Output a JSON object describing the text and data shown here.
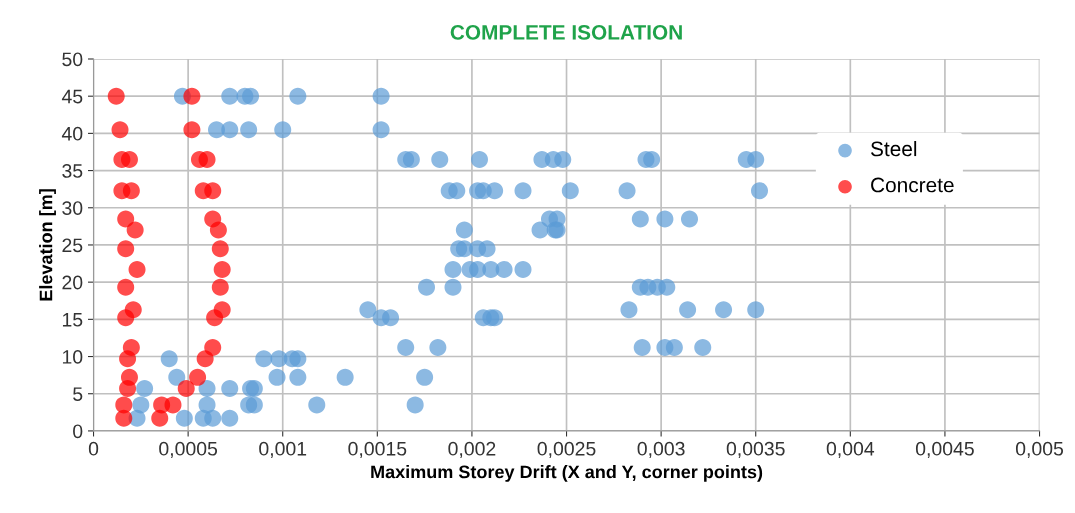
{
  "chart_data": {
    "type": "scatter",
    "title": "COMPLETE ISOLATION",
    "xlabel": "Maximum Storey Drift (X and Y, corner points)",
    "ylabel": "Elevation [m]",
    "xlim": [
      0,
      0.005
    ],
    "ylim": [
      0,
      50
    ],
    "xticks": [
      0,
      {
        "value": 0.0005,
        "label": "0,0005"
      },
      {
        "value": 0.001,
        "label": "0,001"
      },
      {
        "value": 0.0015,
        "label": "0,0015"
      },
      {
        "value": 0.002,
        "label": "0,002"
      },
      {
        "value": 0.0025,
        "label": "0,0025"
      },
      {
        "value": 0.003,
        "label": "0,003"
      },
      {
        "value": 0.0035,
        "label": "0,0035"
      },
      {
        "value": 0.004,
        "label": "0,004"
      },
      {
        "value": 0.0045,
        "label": "0,0045"
      },
      {
        "value": 0.005,
        "label": "0,005"
      }
    ],
    "yticks": [
      0,
      5,
      10,
      15,
      20,
      25,
      30,
      35,
      40,
      45,
      50
    ],
    "grid": true,
    "legend": "top right",
    "marker": "circle",
    "series": [
      {
        "name": "Steel",
        "color": "#5b9bd5",
        "x": [
          0.00047,
          0.00072,
          0.0008,
          0.00083,
          0.00108,
          0.00152,
          0.00065,
          0.00072,
          0.00082,
          0.001,
          0.00152,
          0.00165,
          0.00168,
          0.00183,
          0.00204,
          0.00237,
          0.00243,
          0.00248,
          0.00292,
          0.00295,
          0.00345,
          0.0035,
          0.00188,
          0.00192,
          0.00203,
          0.00206,
          0.00212,
          0.00227,
          0.00252,
          0.00282,
          0.00352,
          0.00241,
          0.00245,
          0.00289,
          0.00302,
          0.00315,
          0.00196,
          0.00236,
          0.00244,
          0.00245,
          0.00193,
          0.00196,
          0.00203,
          0.00208,
          0.0019,
          0.00199,
          0.00203,
          0.0021,
          0.00217,
          0.00227,
          0.00176,
          0.0019,
          0.00289,
          0.00293,
          0.00298,
          0.00303,
          0.00145,
          0.00283,
          0.00314,
          0.00333,
          0.0035,
          0.00152,
          0.00157,
          0.00206,
          0.0021,
          0.00212,
          0.00165,
          0.00182,
          0.0029,
          0.00302,
          0.00307,
          0.00322,
          0.0004,
          0.0009,
          0.00098,
          0.00105,
          0.00108,
          0.00044,
          0.00097,
          0.00108,
          0.00133,
          0.00175,
          0.00027,
          0.0006,
          0.00072,
          0.00083,
          0.00085,
          0.00025,
          0.0006,
          0.00082,
          0.00085,
          0.00118,
          0.0017,
          0.00023,
          0.00048,
          0.00058,
          0.00063,
          0.00072
        ],
        "values": [
          45,
          45,
          45,
          45,
          45,
          45,
          40.5,
          40.5,
          40.5,
          40.5,
          40.5,
          36.5,
          36.5,
          36.5,
          36.5,
          36.5,
          36.5,
          36.5,
          36.5,
          36.5,
          36.5,
          36.5,
          32.3,
          32.3,
          32.3,
          32.3,
          32.3,
          32.3,
          32.3,
          32.3,
          32.3,
          28.5,
          28.5,
          28.5,
          28.5,
          28.5,
          27,
          27,
          27,
          27,
          24.5,
          24.5,
          24.5,
          24.5,
          21.7,
          21.7,
          21.7,
          21.7,
          21.7,
          21.7,
          19.3,
          19.3,
          19.3,
          19.3,
          19.3,
          19.3,
          16.3,
          16.3,
          16.3,
          16.3,
          16.3,
          15.2,
          15.2,
          15.2,
          15.2,
          15.2,
          11.2,
          11.2,
          11.2,
          11.2,
          11.2,
          11.2,
          9.7,
          9.7,
          9.7,
          9.7,
          9.7,
          7.2,
          7.2,
          7.2,
          7.2,
          7.2,
          5.7,
          5.7,
          5.7,
          5.7,
          5.7,
          3.5,
          3.5,
          3.5,
          3.5,
          3.5,
          3.5,
          1.7,
          1.7,
          1.7,
          1.7,
          1.7
        ]
      },
      {
        "name": "Concrete",
        "color": "#ff0000",
        "x": [
          0.00012,
          0.00052,
          0.00014,
          0.00052,
          0.00015,
          0.00019,
          0.00056,
          0.0006,
          0.00015,
          0.0002,
          0.00058,
          0.00063,
          0.00017,
          0.00063,
          0.00022,
          0.00066,
          0.00017,
          0.00067,
          0.00023,
          0.00068,
          0.00017,
          0.00067,
          0.00021,
          0.00068,
          0.00017,
          0.00064,
          0.0002,
          0.00063,
          0.00018,
          0.00059,
          0.00019,
          0.00055,
          0.00018,
          0.00049,
          0.00016,
          0.00036,
          0.00042,
          0.00016,
          0.00035
        ],
        "values": [
          45,
          45,
          40.5,
          40.5,
          36.5,
          36.5,
          36.5,
          36.5,
          32.3,
          32.3,
          32.3,
          32.3,
          28.5,
          28.5,
          27,
          27,
          24.5,
          24.5,
          21.7,
          21.7,
          19.3,
          19.3,
          16.3,
          16.3,
          15.2,
          15.2,
          11.2,
          11.2,
          9.7,
          9.7,
          7.2,
          7.2,
          5.7,
          5.7,
          3.5,
          3.5,
          3.5,
          1.7,
          1.7
        ]
      }
    ]
  }
}
